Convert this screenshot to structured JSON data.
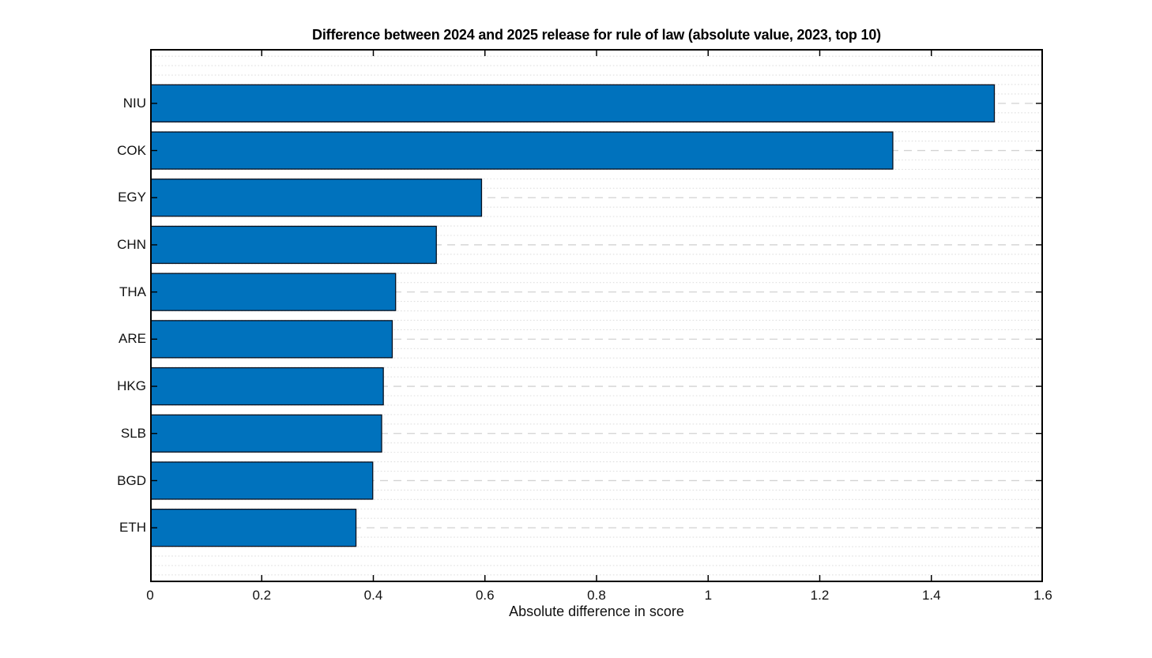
{
  "chart_data": {
    "type": "bar",
    "orientation": "horizontal",
    "title": "Difference between 2024 and 2025 release for rule of law (absolute value, 2023, top 10)",
    "xlabel": "Absolute difference in score",
    "ylabel": "",
    "categories": [
      "NIU",
      "COK",
      "EGY",
      "CHN",
      "THA",
      "ARE",
      "HKG",
      "SLB",
      "BGD",
      "ETH"
    ],
    "values": [
      1.512,
      1.33,
      0.593,
      0.512,
      0.439,
      0.433,
      0.417,
      0.414,
      0.398,
      0.368
    ],
    "xlim": [
      0,
      1.6
    ],
    "xticks": [
      0,
      0.2,
      0.4,
      0.6,
      0.8,
      1,
      1.2,
      1.4,
      1.6
    ],
    "xtick_labels": [
      "0",
      "0.2",
      "0.4",
      "0.6",
      "0.8",
      "1",
      "1.2",
      "1.4",
      "1.6"
    ],
    "grid": "horizontal major dashed at bar centers, horizontal minor dotted (5 per slot), no vertical gridlines",
    "legend_position": "none",
    "bar_width_fraction": 0.79,
    "tick_direction": "in",
    "box": "on",
    "colors": {
      "bar_fill": "#0072BD",
      "bar_edge": "#06101f",
      "axis": "#000000",
      "grid_major": "#d2d2d2",
      "grid_minor": "#dfdfdf",
      "text": "#111111",
      "background": "#ffffff"
    }
  }
}
